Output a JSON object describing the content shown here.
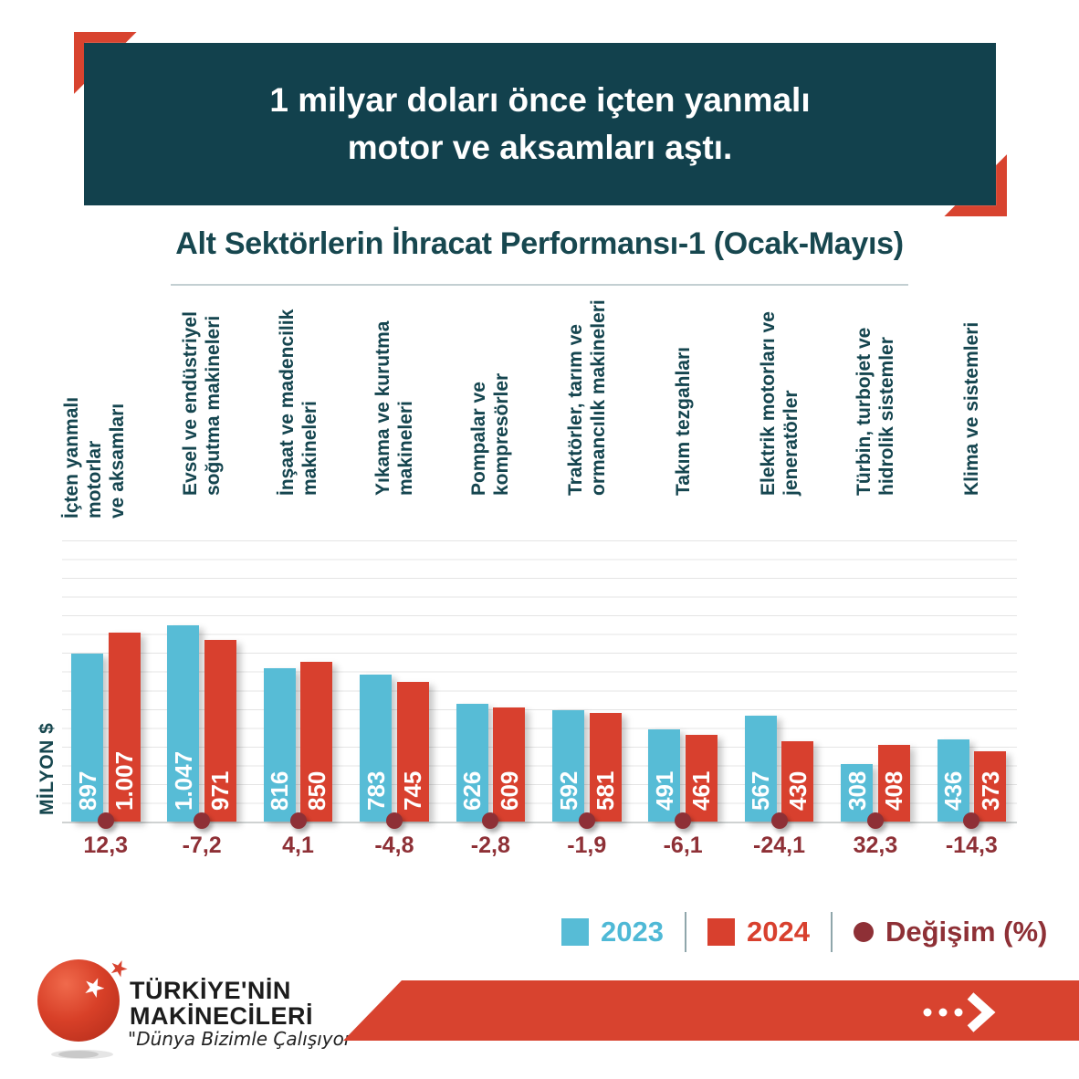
{
  "header": {
    "line1": "1 milyar doları önce içten yanmalı",
    "line2": "motor ve aksamları aştı."
  },
  "title": "Alt Sektörlerin İhracat Performansı-1 (Ocak-Mayıs)",
  "y_axis_label": "MİLYON $",
  "legend": {
    "items": [
      {
        "label": "2023",
        "color": "#57BCD6",
        "marker": "square"
      },
      {
        "label": "2024",
        "color": "#D8402E",
        "marker": "square"
      },
      {
        "label": "Değişim (%)",
        "color": "#8E3036",
        "marker": "circle"
      }
    ]
  },
  "footer": {
    "brand_line1": "TÜRKİYE'NİN",
    "brand_line2": "MAKİNECİLERİ",
    "tagline": "\"Dünya Bizimle Çalışıyor\"",
    "arrow_icon": "ellipsis-chevron-right-icon"
  },
  "colors": {
    "teal_dark": "#12414D",
    "teal_text": "#17474F",
    "red": "#D8432F",
    "bar_blue": "#57BCD6",
    "bar_red": "#D8402E",
    "maroon": "#8E3036",
    "gridline": "#E4E4E4"
  },
  "chart_data": {
    "type": "bar",
    "title": "Alt Sektörlerin İhracat Performansı-1 (Ocak-Mayıs)",
    "ylabel": "MİLYON $",
    "ylim": [
      0,
      1500
    ],
    "grid": true,
    "grid_step": 100,
    "legend_position": "bottom",
    "categories": [
      "İçten yanmalı motorlar\nve aksamları",
      "Evsel ve endüstriyel\nsoğutma makineleri",
      "İnşaat ve madencilik\nmakineleri",
      "Yıkama ve kurutma\nmakineleri",
      "Pompalar ve\nkompresörler",
      "Traktörler, tarım ve\normancılık makineleri",
      "Takım tezgahları",
      "Elektrik motorları ve\njeneratörler",
      "Türbin, turbojet ve\nhidrolik sistemler",
      "Klima ve sistemleri"
    ],
    "series": [
      {
        "name": "2023",
        "color": "#57BCD6",
        "values": [
          897,
          1047,
          816,
          783,
          626,
          592,
          491,
          567,
          308,
          436
        ],
        "display": [
          "897",
          "1.047",
          "816",
          "783",
          "626",
          "592",
          "491",
          "567",
          "308",
          "436"
        ]
      },
      {
        "name": "2024",
        "color": "#D8402E",
        "values": [
          1007,
          971,
          850,
          745,
          609,
          581,
          461,
          430,
          408,
          373
        ],
        "display": [
          "1.007",
          "971",
          "850",
          "745",
          "609",
          "581",
          "461",
          "430",
          "408",
          "373"
        ]
      }
    ],
    "change_percent": {
      "name": "Değişim (%)",
      "color": "#8E3036",
      "values": [
        12.3,
        -7.2,
        4.1,
        -4.8,
        -2.8,
        -1.9,
        -6.1,
        -24.1,
        32.3,
        -14.3
      ],
      "display": [
        "12,3",
        "-7,2",
        "4,1",
        "-4,8",
        "-2,8",
        "-1,9",
        "-6,1",
        "-24,1",
        "32,3",
        "-14,3"
      ]
    }
  }
}
